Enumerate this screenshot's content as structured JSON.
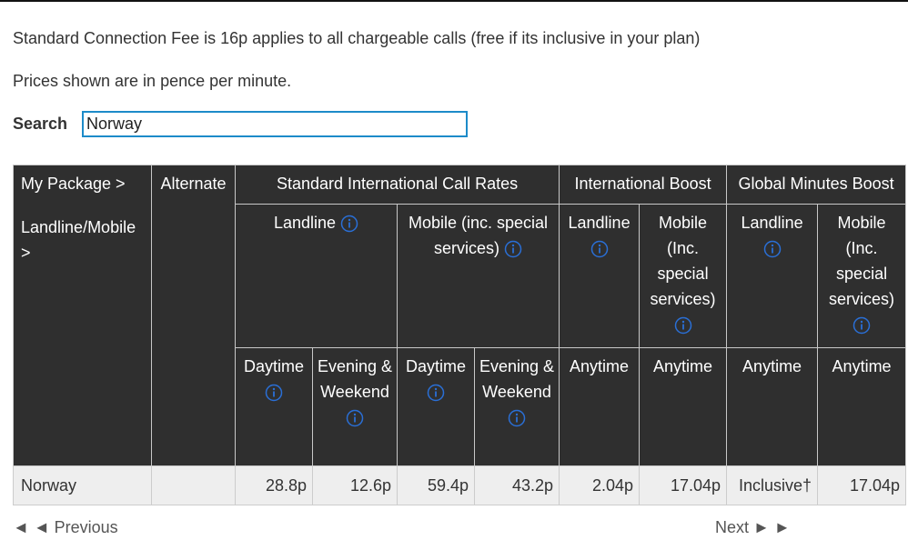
{
  "notices": [
    "Standard Connection Fee is 16p applies to all chargeable calls (free if its inclusive in your plan)",
    "Prices shown are in pence per minute."
  ],
  "search": {
    "label": "Search",
    "value": "Norway"
  },
  "table": {
    "header": {
      "package": "My Package >",
      "type": "Landline/Mobile >",
      "alternate": "Alternate",
      "groups": [
        {
          "title": "Standard International Call Rates",
          "subgroups": [
            {
              "title": "Landline",
              "periods": [
                "Daytime",
                "Evening & Weekend"
              ]
            },
            {
              "title": "Mobile (inc. special services)",
              "periods": [
                "Daytime",
                "Evening & Weekend"
              ]
            }
          ]
        },
        {
          "title": "International Boost",
          "subgroups": [
            {
              "title": "Landline",
              "periods": [
                "Anytime"
              ]
            },
            {
              "title": "Mobile (Inc. special services)",
              "periods": [
                "Anytime"
              ]
            }
          ]
        },
        {
          "title": "Global Minutes Boost",
          "subgroups": [
            {
              "title": "Landline",
              "periods": [
                "Anytime"
              ]
            },
            {
              "title": "Mobile (Inc. special services)",
              "periods": [
                "Anytime"
              ]
            }
          ]
        }
      ]
    },
    "rows": [
      {
        "destination": "Norway",
        "rates": [
          "28.8p",
          "12.6p",
          "59.4p",
          "43.2p",
          "2.04p",
          "17.04p",
          "Inclusive†",
          "17.04p"
        ]
      }
    ]
  },
  "pagination": {
    "previous": "◄ ◄ Previous",
    "next": "Next ► ►"
  }
}
